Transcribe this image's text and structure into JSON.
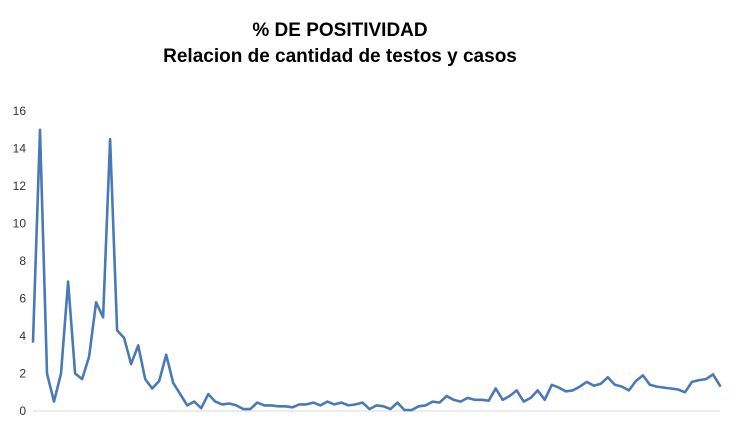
{
  "chart_data": {
    "type": "line",
    "title": "% DE POSITIVIDAD",
    "subtitle": "Relacion de cantidad de testos y casos",
    "xlabel": "",
    "ylabel": "",
    "ylim": [
      0,
      16
    ],
    "yticks": [
      0,
      2,
      4,
      6,
      8,
      10,
      12,
      14,
      16
    ],
    "grid": false,
    "line_color": "#4a7ab5",
    "series": [
      {
        "values": [
          3.7,
          15.0,
          2.0,
          0.5,
          2.0,
          6.9,
          2.0,
          1.7,
          2.9,
          5.8,
          5.0,
          14.5,
          4.3,
          3.9,
          2.5,
          3.5,
          1.7,
          1.2,
          1.6,
          3.0,
          1.5,
          0.9,
          0.3,
          0.5,
          0.15,
          0.9,
          0.5,
          0.35,
          0.4,
          0.3,
          0.1,
          0.1,
          0.45,
          0.3,
          0.3,
          0.25,
          0.25,
          0.2,
          0.35,
          0.35,
          0.45,
          0.3,
          0.5,
          0.35,
          0.45,
          0.3,
          0.35,
          0.45,
          0.1,
          0.3,
          0.25,
          0.1,
          0.45,
          0.05,
          0.05,
          0.25,
          0.3,
          0.5,
          0.45,
          0.8,
          0.6,
          0.5,
          0.7,
          0.6,
          0.6,
          0.55,
          1.2,
          0.6,
          0.8,
          1.1,
          0.5,
          0.7,
          1.1,
          0.6,
          1.4,
          1.25,
          1.05,
          1.1,
          1.3,
          1.55,
          1.35,
          1.45,
          1.8,
          1.4,
          1.3,
          1.1,
          1.6,
          1.9,
          1.4,
          1.3,
          1.25,
          1.2,
          1.15,
          1.0,
          1.55,
          1.65,
          1.7,
          1.95,
          1.35
        ]
      }
    ]
  }
}
